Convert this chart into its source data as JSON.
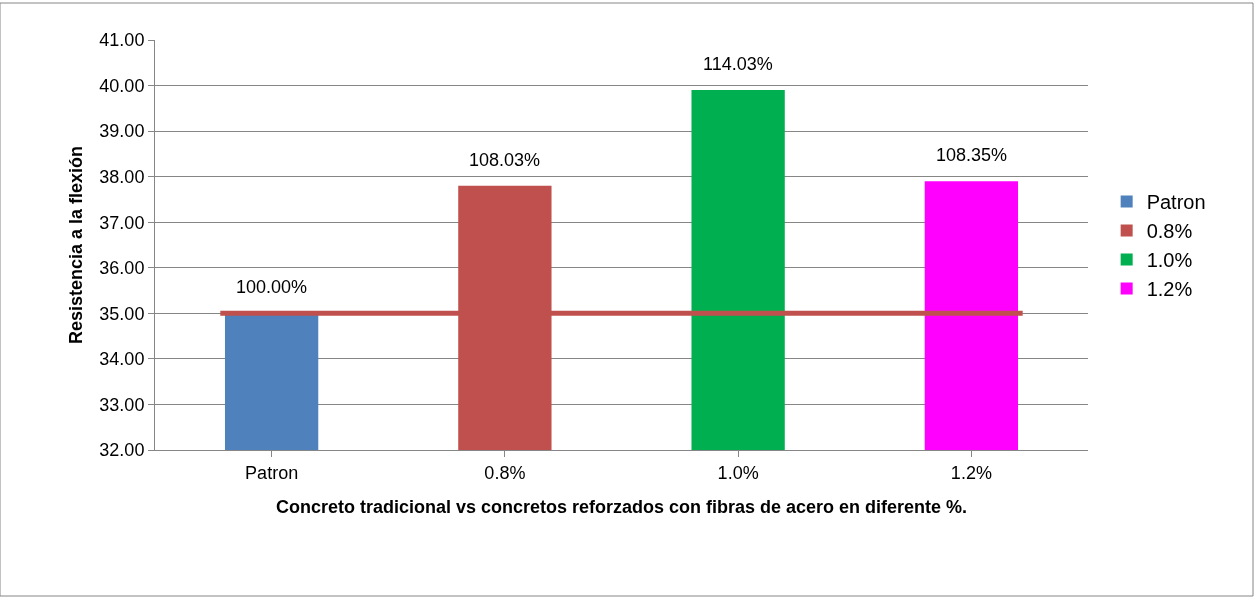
{
  "chart_data": {
    "type": "bar",
    "xlabel": "Concreto tradicional vs concretos reforzados con fibras de acero en diferente %.",
    "ylabel": "Resistencia a la flexión",
    "categories": [
      "Patron",
      "0.8%",
      "1.0%",
      "1.2%"
    ],
    "series": [
      {
        "name": "Patron",
        "color": "#4f81bd",
        "values": [
          35.0,
          null,
          null,
          null
        ]
      },
      {
        "name": "0.8%",
        "color": "#c0504d",
        "values": [
          null,
          37.8,
          null,
          null
        ]
      },
      {
        "name": "1.0%",
        "color": "#00b050",
        "values": [
          null,
          null,
          39.9,
          null
        ]
      },
      {
        "name": "1.2%",
        "color": "#ff00ff",
        "values": [
          null,
          null,
          null,
          37.9
        ]
      }
    ],
    "annotations": [
      {
        "text": "100.00%",
        "x": "Patron",
        "y": 35.0
      },
      {
        "text": "108.03%",
        "x": "0.8%",
        "y": 37.8
      },
      {
        "text": "114.03%",
        "x": "1.0%",
        "y": 39.9
      },
      {
        "text": "108.35%",
        "x": "1.2%",
        "y": 37.9
      }
    ],
    "ylim": [
      32,
      41
    ],
    "yticks": [
      {
        "value": 32,
        "label": "32.00"
      },
      {
        "value": 33,
        "label": "33.00"
      },
      {
        "value": 34,
        "label": "34.00"
      },
      {
        "value": 35,
        "label": "35.00"
      },
      {
        "value": 36,
        "label": "36.00"
      },
      {
        "value": 37,
        "label": "37.00"
      },
      {
        "value": 38,
        "label": "38.00"
      },
      {
        "value": 39,
        "label": "39.00"
      },
      {
        "value": 40,
        "label": "40.00"
      },
      {
        "value": 41,
        "label": "41.00"
      }
    ],
    "ref_lines": [
      {
        "axis": "y",
        "value": 35.0,
        "color": "#c0504d",
        "line_style": "solid"
      }
    ],
    "grid": "y",
    "legend": "right"
  }
}
